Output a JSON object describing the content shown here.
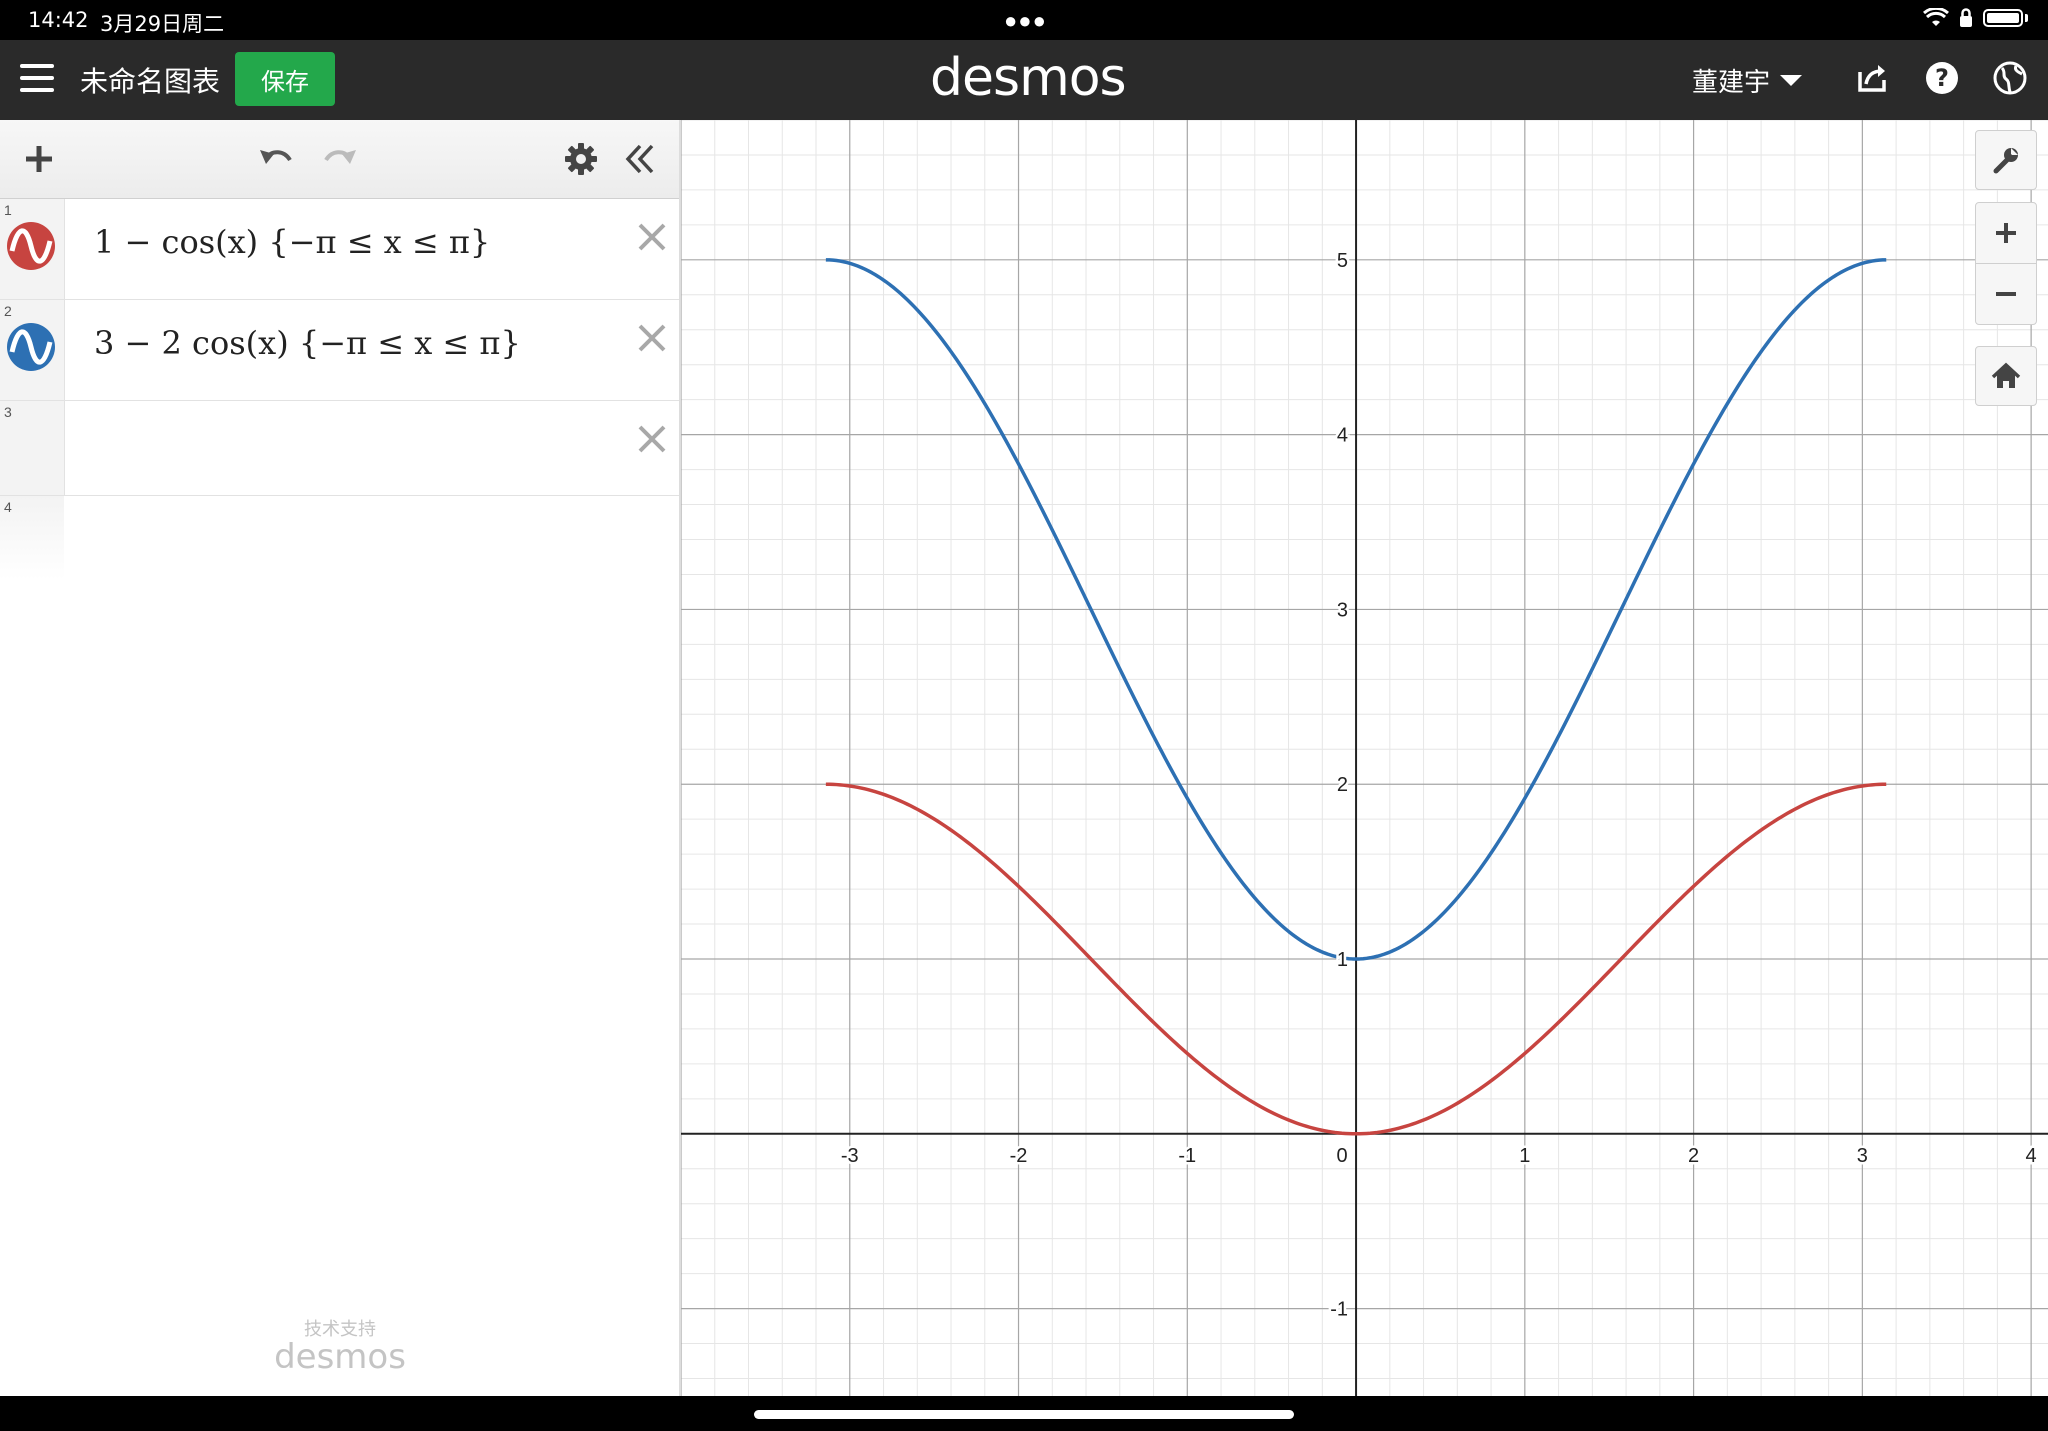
{
  "status_bar": {
    "time": "14:42",
    "date": "3月29日周二"
  },
  "header": {
    "title": "未命名图表",
    "save_label": "保存",
    "logo": "desmos",
    "user": "董建宇"
  },
  "expressions": [
    {
      "number": "1",
      "latex_text": "1 − cos(x) {−π ≤ x ≤ π}",
      "color": "#c74440"
    },
    {
      "number": "2",
      "latex_text": "3 − 2 cos(x) {−π ≤ x ≤ π}",
      "color": "#2d70b3"
    },
    {
      "number": "3",
      "latex_text": ""
    },
    {
      "number": "4",
      "latex_text": ""
    }
  ],
  "footer": {
    "powered_by": "技术支持",
    "logo": "desmos"
  },
  "chart_data": {
    "type": "line",
    "x_range": [
      -4,
      4.1
    ],
    "y_range": [
      -1.5,
      5.8
    ],
    "x_ticks": [
      "-3",
      "-2",
      "-1",
      "0",
      "1",
      "2",
      "3",
      "4"
    ],
    "y_ticks": [
      "-1",
      "1",
      "2",
      "3",
      "4",
      "5"
    ],
    "grid": true,
    "series": [
      {
        "expression": "1 - cos(x)",
        "domain": [
          -3.14159,
          3.14159
        ],
        "color": "#c74440"
      },
      {
        "expression": "3 - 2cos(x)",
        "domain": [
          -3.14159,
          3.14159
        ],
        "color": "#2d70b3"
      }
    ]
  }
}
